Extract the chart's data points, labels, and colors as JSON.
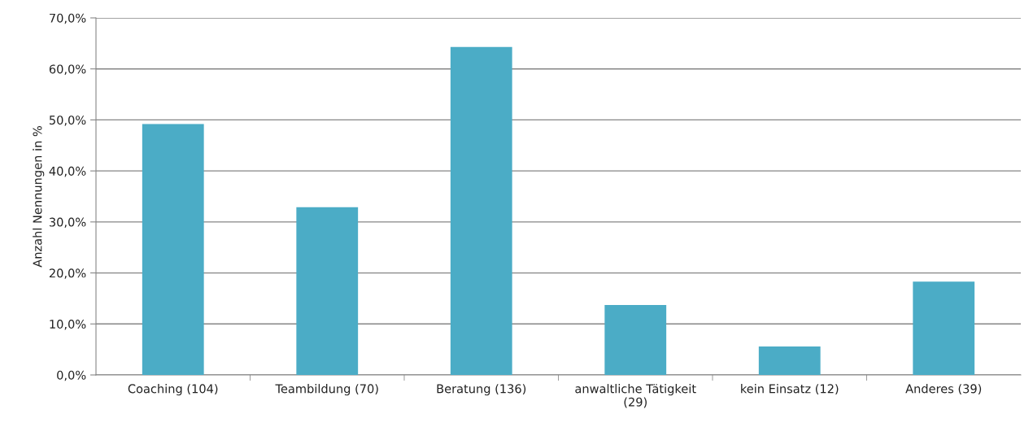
{
  "chart_data": {
    "type": "bar",
    "ylabel": "Anzahl Nennungen in %",
    "categories": [
      "Coaching (104)",
      "Teambildung (70)",
      "Beratung (136)",
      "anwaltliche Tätigkeit\n(29)",
      "kein Einsatz (12)",
      "Anderes (39)"
    ],
    "values": [
      49.2,
      32.9,
      64.3,
      13.7,
      5.6,
      18.3
    ],
    "color": "#4bacc6",
    "ylim": [
      0,
      70
    ],
    "yticks": [
      {
        "value": 0,
        "label": "0,0%"
      },
      {
        "value": 10,
        "label": "10,0%"
      },
      {
        "value": 20,
        "label": "20,0%"
      },
      {
        "value": 30,
        "label": "30,0%"
      },
      {
        "value": 40,
        "label": "40,0%"
      },
      {
        "value": 50,
        "label": "50,0%"
      },
      {
        "value": 60,
        "label": "60,0%"
      },
      {
        "value": 70,
        "label": "70,0%"
      }
    ],
    "grid": "y",
    "legend": false
  }
}
